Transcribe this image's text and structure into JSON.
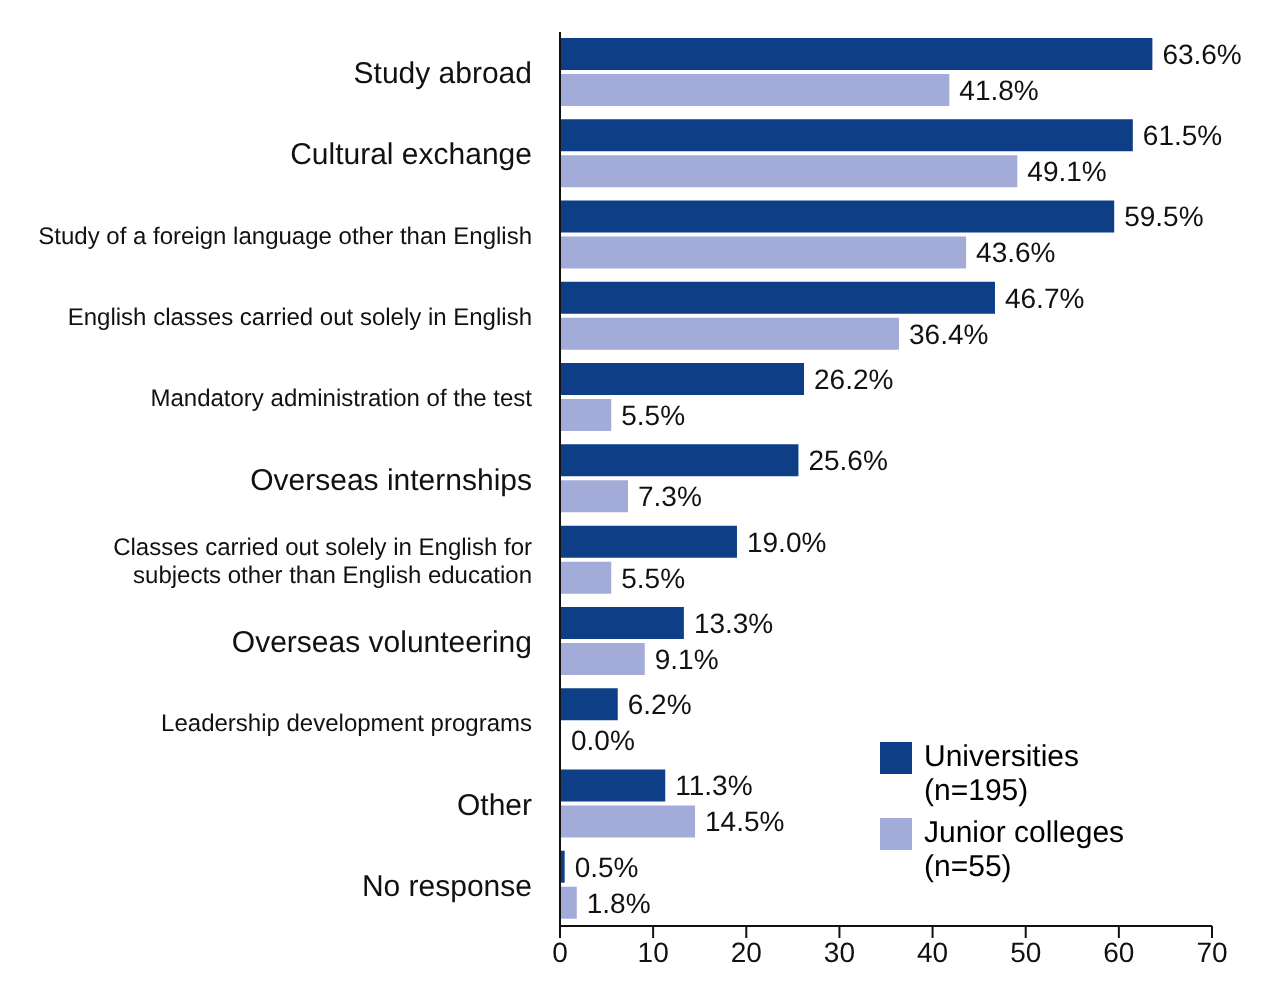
{
  "chart_data": {
    "type": "bar",
    "orientation": "horizontal",
    "categories": [
      "Study abroad",
      "Cultural exchange",
      "Study of a foreign language other than English",
      "English classes carried out solely in English",
      "Mandatory administration of the test",
      "Overseas internships",
      "Classes carried out solely in English for subjects other than English education",
      "Overseas volunteering",
      "Leadership development programs",
      "Other",
      "No response"
    ],
    "series": [
      {
        "name": "Universities (n=195)",
        "color": "#0e3f86",
        "values": [
          63.6,
          61.5,
          59.5,
          46.7,
          26.2,
          25.6,
          19.0,
          13.3,
          6.2,
          11.3,
          0.5
        ],
        "value_labels": [
          "63.6%",
          "61.5%",
          "59.5%",
          "46.7%",
          "26.2%",
          "25.6%",
          "19.0%",
          "13.3%",
          "6.2%",
          "11.3%",
          "0.5%"
        ]
      },
      {
        "name": "Junior colleges (n=55)",
        "color": "#a3acd8",
        "values": [
          41.8,
          49.1,
          43.6,
          36.4,
          5.5,
          7.3,
          5.5,
          9.1,
          0.0,
          14.5,
          1.8
        ],
        "value_labels": [
          "41.8%",
          "49.1%",
          "43.6%",
          "36.4%",
          "5.5%",
          "7.3%",
          "5.5%",
          "9.1%",
          "0.0%",
          "14.5%",
          "1.8%"
        ]
      }
    ],
    "xlim": [
      0,
      70
    ],
    "xticks": [
      0,
      10,
      20,
      30,
      40,
      50,
      60,
      70
    ],
    "legend": "bottom right",
    "grid": false
  }
}
